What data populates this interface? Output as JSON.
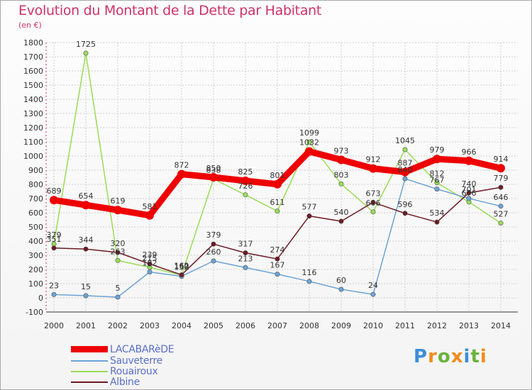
{
  "title": "Evolution du Montant de la Dette par Habitant",
  "unit": "(en €)",
  "brand": {
    "letters": [
      "P",
      "r",
      "o",
      "x",
      "i",
      "t",
      "i"
    ],
    "colors": [
      "#3a8fd9",
      "#ef8d1f",
      "#6cb33f",
      "#ef8d1f",
      "#3a8fd9",
      "#6cb33f",
      "#ef8d1f"
    ]
  },
  "chart_data": {
    "type": "line",
    "x": [
      2000,
      2001,
      2002,
      2003,
      2004,
      2005,
      2006,
      2007,
      2008,
      2009,
      2010,
      2011,
      2012,
      2013,
      2014
    ],
    "ylim": [
      -100,
      1800
    ],
    "yticks": [
      -100,
      0,
      100,
      200,
      300,
      400,
      500,
      600,
      700,
      800,
      900,
      1000,
      1100,
      1200,
      1300,
      1400,
      1500,
      1600,
      1700,
      1800
    ],
    "grid": true,
    "legend": "bottom-left",
    "series": [
      {
        "name": "LACABARèDE",
        "color": "#ee0000",
        "values": [
          689,
          654,
          619,
          581,
          872,
          850,
          825,
          801,
          1032,
          973,
          912,
          887,
          979,
          966,
          914
        ]
      },
      {
        "name": "Sauveterre",
        "color": "#6da3d4",
        "values": [
          23,
          15,
          5,
          182,
          152,
          260,
          213,
          167,
          116,
          60,
          24,
          840,
          767,
          701,
          646
        ]
      },
      {
        "name": "Rouairoux",
        "color": "#99dd55",
        "values": [
          379,
          1725,
          263,
          215,
          160,
          838,
          726,
          611,
          1099,
          803,
          606,
          1045,
          812,
          676,
          527
        ]
      },
      {
        "name": "Albine",
        "color": "#6b1a22",
        "values": [
          351,
          344,
          320,
          239,
          162,
          379,
          317,
          274,
          577,
          540,
          673,
          596,
          534,
          740,
          779
        ]
      }
    ],
    "labels": [
      [
        "689",
        "654",
        "619",
        "581",
        "872",
        "850",
        "825",
        "801",
        "1032",
        "973",
        "912",
        "887",
        "979",
        "966",
        "914"
      ],
      [
        "23",
        "15",
        "5",
        "182",
        "152",
        "260",
        "213",
        "167",
        "116",
        "60",
        "24",
        "840",
        "767",
        "701",
        "646"
      ],
      [
        "379",
        "1725",
        "263",
        "215",
        "160",
        "838",
        "726",
        "611",
        "1099",
        "803",
        "606",
        "1045",
        "812",
        "676",
        "527"
      ],
      [
        "351",
        "344",
        "320",
        "239",
        "162",
        "379",
        "317",
        "274",
        "577",
        "540",
        "673",
        "596",
        "534",
        "740",
        "779"
      ]
    ]
  }
}
